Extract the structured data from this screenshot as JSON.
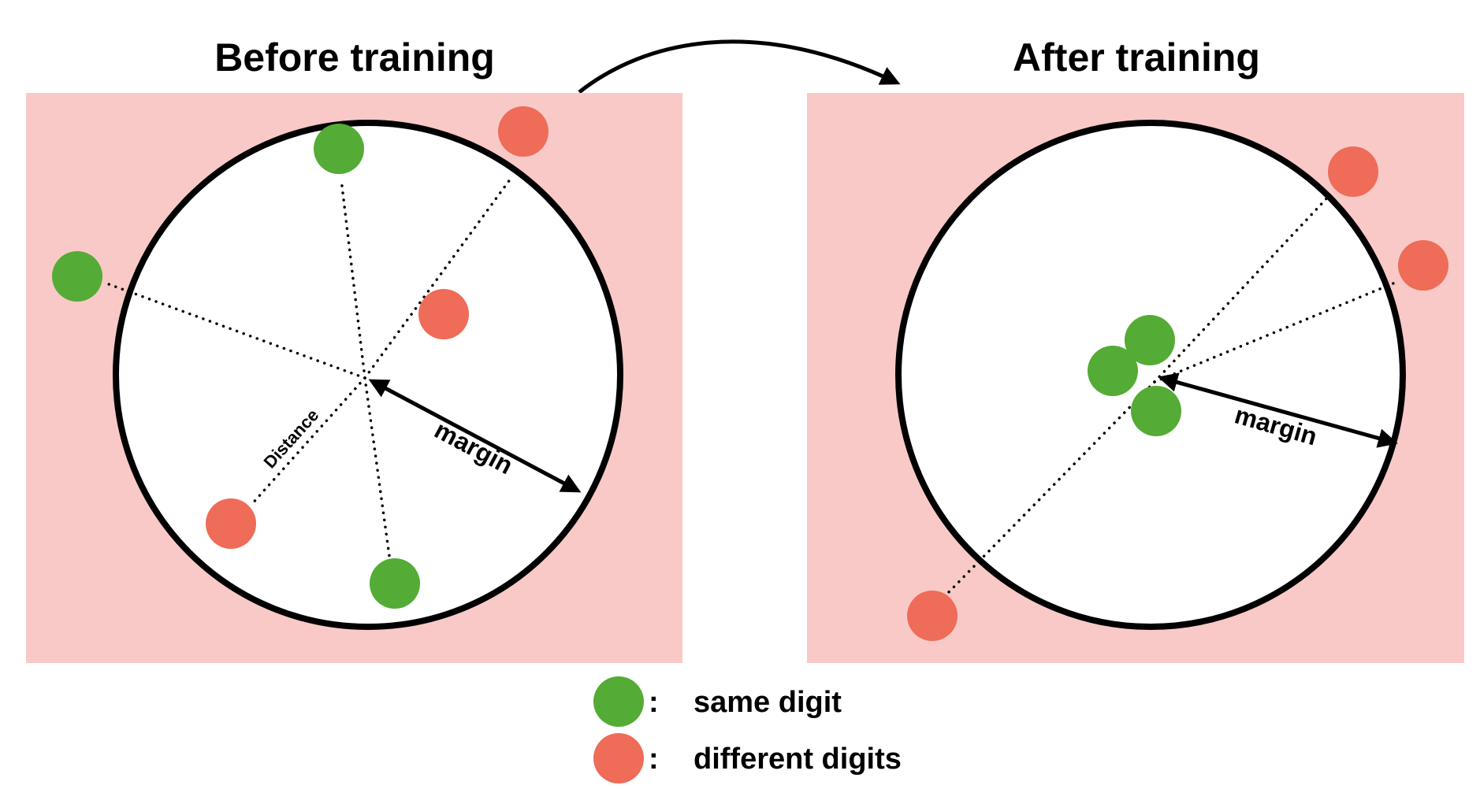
{
  "diagram": {
    "left_panel": {
      "title": "Before training",
      "margin_label": "margin",
      "distance_label": "Distance"
    },
    "right_panel": {
      "title": "After training",
      "margin_label": "margin"
    },
    "legend": {
      "separator": ":",
      "same": "same digit",
      "different": "different digits"
    },
    "colors": {
      "background_region": "#f8c9c6",
      "same_digit": "#54ab35",
      "different_digits": "#ee6c58",
      "circle_fill": "#ffffff",
      "stroke": "#000000"
    }
  }
}
